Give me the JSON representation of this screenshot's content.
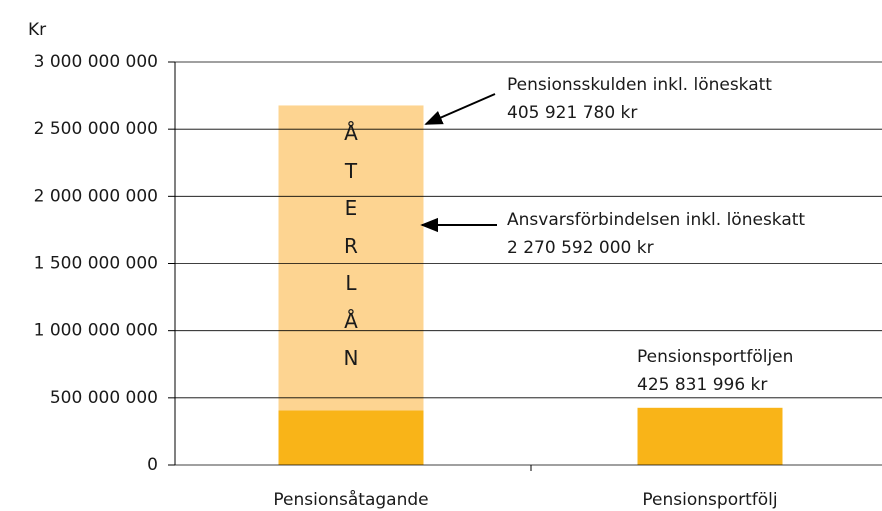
{
  "chart_data": {
    "type": "bar",
    "stacked": true,
    "y_label": "Kr",
    "categories": [
      "Pensionsåtagande",
      "Pensionsportfölj"
    ],
    "series": [
      {
        "name": "Pensionsskulden inkl. löneskatt",
        "color": "#f9b418",
        "values": [
          405921780,
          null
        ],
        "value_labels": [
          "405 921 780 kr",
          null
        ]
      },
      {
        "name": "Ansvarsförbindelsen inkl. löneskatt",
        "color": "#fdd491",
        "values": [
          2270592000,
          null
        ],
        "value_labels": [
          "2 270 592 000 kr",
          null
        ]
      },
      {
        "name": "Pensionsportföljen",
        "color": "#f9b418",
        "values": [
          null,
          425831996
        ],
        "value_labels": [
          null,
          "425 831 996 kr"
        ]
      }
    ],
    "inner_label": "ÅTERLÅN",
    "ylim": [
      0,
      3000000000
    ],
    "yticks": [
      0,
      {
        "value": 500000000,
        "label": "500 000 000"
      },
      {
        "value": 1000000000,
        "label": "1 000 000 000"
      },
      {
        "value": 1500000000,
        "label": "1 500 000 000"
      },
      {
        "value": 2000000000,
        "label": "2 000 000 000"
      },
      {
        "value": 2500000000,
        "label": "2 500 000 000"
      },
      {
        "value": 3000000000,
        "label": "3 000 000 000"
      }
    ],
    "grid": true
  }
}
